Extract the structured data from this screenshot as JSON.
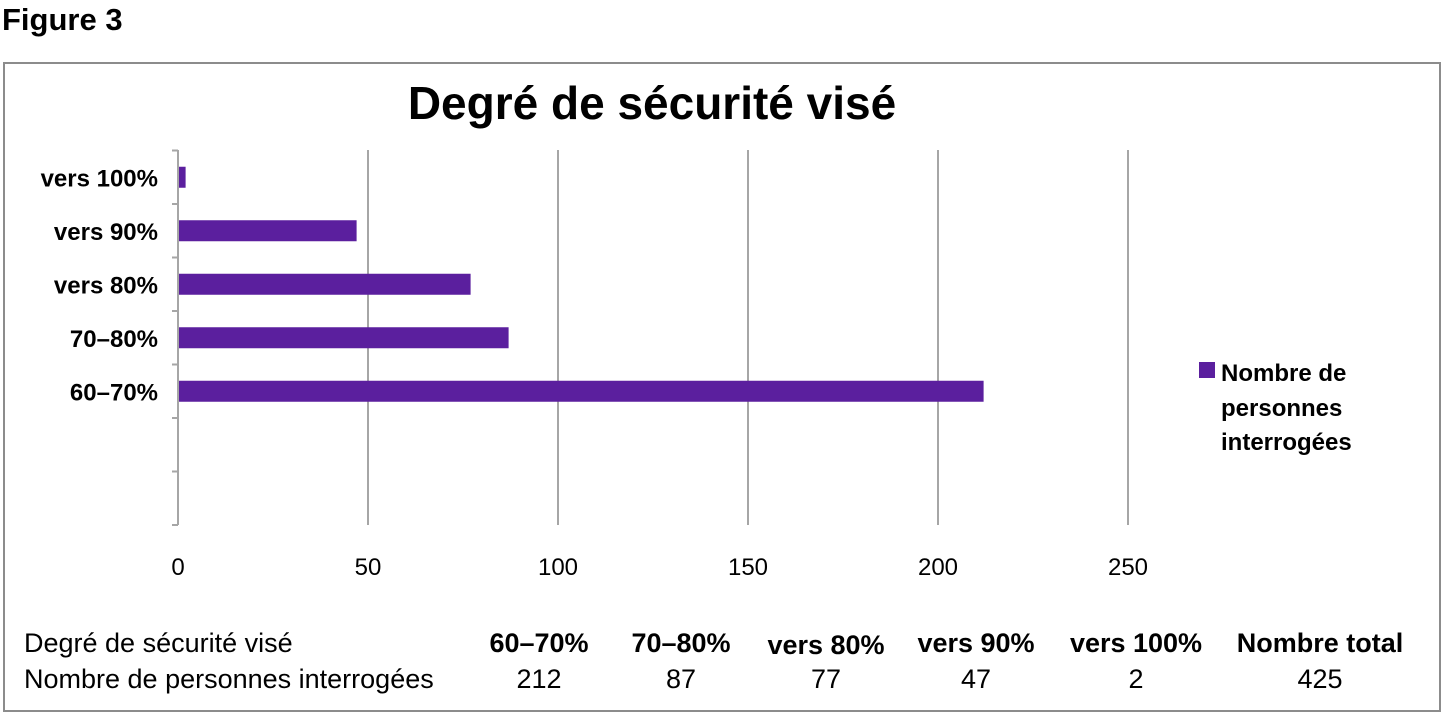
{
  "figure_label": "Figure 3",
  "chart_data": {
    "type": "bar",
    "orientation": "horizontal",
    "title": "Degré de sécurité visé",
    "categories": [
      "60–70%",
      "70–80%",
      "vers 80%",
      "vers 90%",
      "vers 100%"
    ],
    "series": [
      {
        "name": "Nombre de personnes interrogées",
        "values": [
          212,
          87,
          77,
          47,
          2
        ],
        "color": "#5b1f9e"
      }
    ],
    "xlim": [
      0,
      250
    ],
    "xticks": [
      "0",
      "50",
      "100",
      "150",
      "200",
      "250"
    ],
    "grid": true,
    "legend_position": "right"
  },
  "legend": {
    "lines": [
      "Nombre de",
      "personnes",
      "interrogées"
    ]
  },
  "table": {
    "row_headers": [
      "Degré de sécurité visé",
      "Nombre de personnes interrogées"
    ],
    "columns": [
      "60–70%",
      "70–80%",
      "vers 80%",
      "vers 90%",
      "vers 100%",
      "Nombre total"
    ],
    "values": [
      "212",
      "87",
      "77",
      "47",
      "2",
      "425"
    ]
  },
  "colors": {
    "bar": "#5b1f9e",
    "grid": "#a6a6a6",
    "frame": "#8c8c8c"
  }
}
